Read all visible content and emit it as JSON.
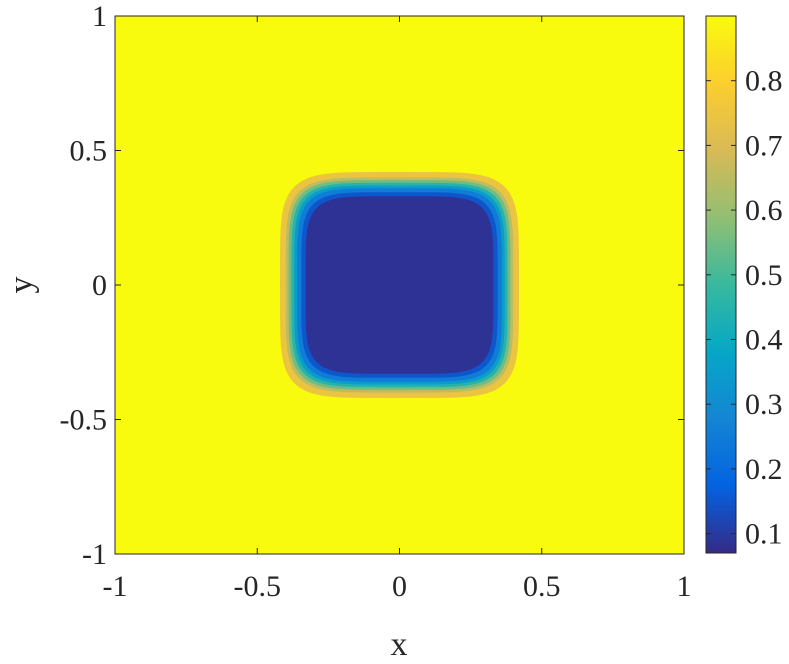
{
  "chart_data": {
    "type": "heatmap",
    "title": "",
    "xlabel": "x",
    "ylabel": "y",
    "xlim": [
      -1,
      1
    ],
    "ylim": [
      -1,
      1
    ],
    "x_ticks": [
      -1,
      -0.5,
      0,
      0.5,
      1
    ],
    "x_tick_labels": [
      "-1",
      "-0.5",
      "0",
      "0.5",
      "1"
    ],
    "y_ticks": [
      -1,
      -0.5,
      0,
      0.5,
      1
    ],
    "y_tick_labels": [
      "-1",
      "-0.5",
      "0",
      "0.5",
      "1"
    ],
    "grid": false,
    "colorbar": {
      "placement": "right",
      "colormap": "parula",
      "range": [
        0.07,
        0.9
      ],
      "ticks": [
        0.1,
        0.2,
        0.3,
        0.4,
        0.5,
        0.6,
        0.7,
        0.8
      ],
      "tick_labels": [
        "0.1",
        "0.2",
        "0.3",
        "0.4",
        "0.5",
        "0.6",
        "0.7",
        "0.8"
      ]
    },
    "field": {
      "description_shape": "rounded-square well centered at origin",
      "center": [
        0,
        0
      ],
      "background_value": 0.9,
      "min_value": 0.07,
      "contours": [
        {
          "level": 0.8,
          "half_width": 0.42
        },
        {
          "level": 0.7,
          "half_width": 0.4
        },
        {
          "level": 0.6,
          "half_width": 0.39
        },
        {
          "level": 0.5,
          "half_width": 0.38
        },
        {
          "level": 0.4,
          "half_width": 0.37
        },
        {
          "level": 0.3,
          "half_width": 0.36
        },
        {
          "level": 0.2,
          "half_width": 0.345
        },
        {
          "level": 0.1,
          "half_width": 0.33
        }
      ]
    }
  },
  "colors": {
    "axis": "#262626",
    "background": "#ffffff",
    "parula_stops": [
      "#352a87",
      "#0363e1",
      "#1485d4",
      "#06a7c6",
      "#38b99e",
      "#92bf73",
      "#d9ba56",
      "#fcce2e",
      "#f9fb0e"
    ]
  }
}
